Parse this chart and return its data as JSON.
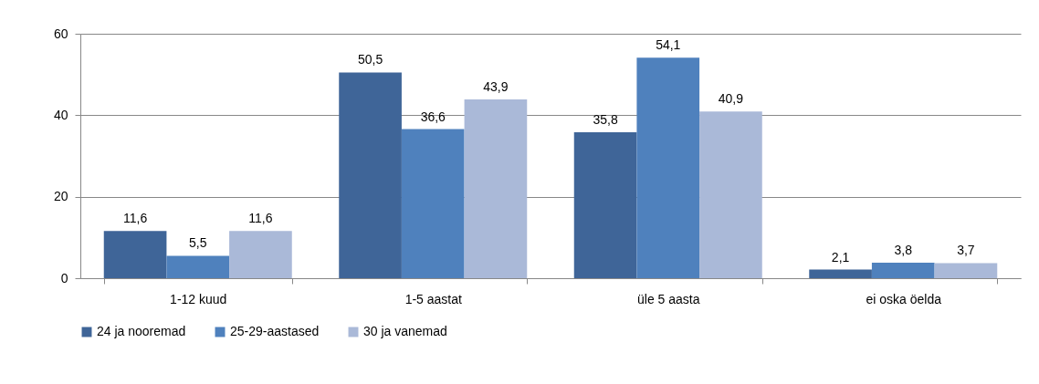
{
  "chart_data": {
    "type": "bar",
    "categories": [
      "1-12 kuud",
      "1-5 aastat",
      "üle 5 aasta",
      "ei oska öelda"
    ],
    "series": [
      {
        "name": "24 ja nooremad",
        "color": "#3f6598",
        "values": [
          11.6,
          50.5,
          35.8,
          2.1
        ],
        "value_labels": [
          "11,6",
          "50,5",
          "35,8",
          "2,1"
        ]
      },
      {
        "name": "25-29-aastased",
        "color": "#4f81bd",
        "values": [
          5.5,
          36.6,
          54.1,
          3.8
        ],
        "value_labels": [
          "5,5",
          "36,6",
          "54,1",
          "3,8"
        ]
      },
      {
        "name": "30 ja vanemad",
        "color": "#aab9d8",
        "values": [
          11.6,
          43.9,
          40.9,
          3.7
        ],
        "value_labels": [
          "11,6",
          "43,9",
          "40,9",
          "3,7"
        ]
      }
    ],
    "ylim": [
      0,
      60
    ],
    "yticks": [
      0,
      20,
      40,
      60
    ],
    "grid": "y",
    "legend": "bottom"
  }
}
